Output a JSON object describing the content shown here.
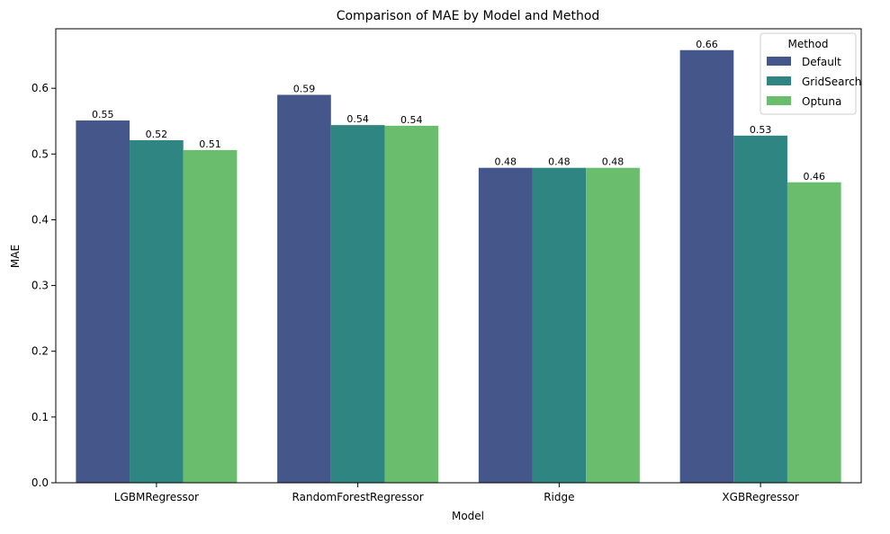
{
  "chart_data": {
    "type": "bar",
    "title": "Comparison of MAE by Model and Method",
    "xlabel": "Model",
    "ylabel": "MAE",
    "categories": [
      "LGBMRegressor",
      "RandomForestRegressor",
      "Ridge",
      "XGBRegressor"
    ],
    "series": [
      {
        "name": "Default",
        "color": "#45578a",
        "values": [
          0.551,
          0.59,
          0.479,
          0.658
        ],
        "labels": [
          "0.55",
          "0.59",
          "0.48",
          "0.66"
        ]
      },
      {
        "name": "GridSearch",
        "color": "#2e8581",
        "values": [
          0.521,
          0.544,
          0.479,
          0.528
        ],
        "labels": [
          "0.52",
          "0.54",
          "0.48",
          "0.53"
        ]
      },
      {
        "name": "Optuna",
        "color": "#6abd6c",
        "values": [
          0.506,
          0.543,
          0.479,
          0.457
        ],
        "labels": [
          "0.51",
          "0.54",
          "0.48",
          "0.46"
        ]
      }
    ],
    "ylim": [
      0,
      0.6905
    ],
    "yticks": [
      0.0,
      0.1,
      0.2,
      0.3,
      0.4,
      0.5,
      0.6
    ],
    "ytick_labels": [
      "0.0",
      "0.1",
      "0.2",
      "0.3",
      "0.4",
      "0.5",
      "0.6"
    ],
    "grid": false,
    "legend": {
      "title": "Method",
      "placement": "top-right"
    }
  }
}
